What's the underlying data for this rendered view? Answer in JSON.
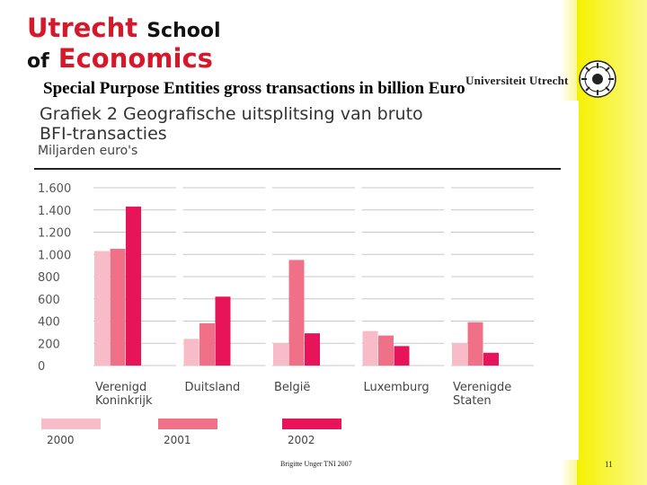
{
  "logo": {
    "word1": "Utrecht",
    "word2": "School",
    "word3": "of",
    "word4": "Economics",
    "university": "Universiteit Utrecht"
  },
  "slide": {
    "title": "Special Purpose Entities  gross transactions in billion Euro"
  },
  "footer": {
    "author": "Brigitte Unger TNI 2007",
    "page": "11"
  },
  "colors": {
    "brand_red": "#d6182a",
    "band_yellow": "#f4f000",
    "series_2000": "#f8bcc8",
    "series_2001": "#f07088",
    "series_2002": "#e8145a",
    "grid": "#c8c8c8"
  },
  "chart_data": {
    "type": "bar",
    "title_line1": "Grafiek 2  Geografische uitsplitsing van bruto",
    "title_line2": "BFI-transacties",
    "ylabel": "Miljarden euro's",
    "ylim": [
      0,
      1600
    ],
    "yticks": [
      0,
      200,
      400,
      600,
      800,
      1000,
      1200,
      1400,
      1600
    ],
    "ytick_labels": [
      "0",
      "200",
      "400",
      "600",
      "800",
      "1.000",
      "1.200",
      "1.400",
      "1.600"
    ],
    "grid": true,
    "legend_position": "bottom",
    "categories": [
      {
        "line1": "Verenigd",
        "line2": "Koninkrijk"
      },
      {
        "line1": "Duitsland",
        "line2": ""
      },
      {
        "line1": "België",
        "line2": ""
      },
      {
        "line1": "Luxemburg",
        "line2": ""
      },
      {
        "line1": "Verenigde",
        "line2": "Staten"
      }
    ],
    "series": [
      {
        "name": "2000",
        "values": [
          1030,
          240,
          200,
          310,
          200
        ]
      },
      {
        "name": "2001",
        "values": [
          1050,
          380,
          950,
          270,
          390
        ]
      },
      {
        "name": "2002",
        "values": [
          1430,
          620,
          290,
          175,
          115
        ]
      }
    ]
  }
}
